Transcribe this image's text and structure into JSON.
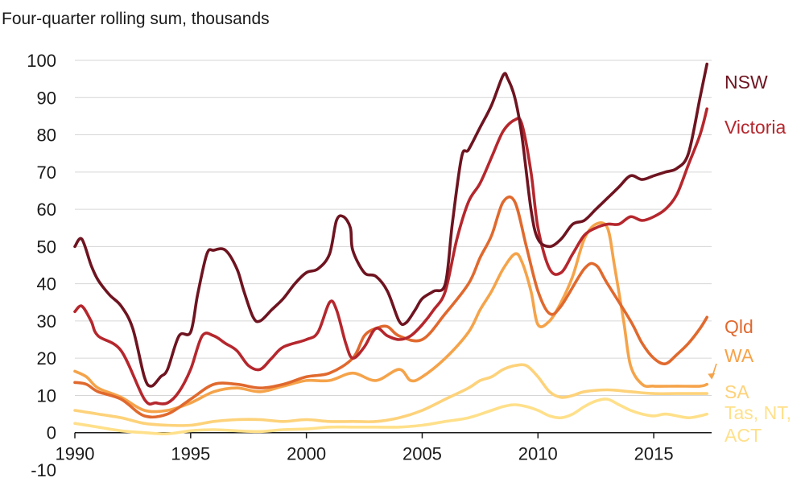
{
  "chart_data": {
    "type": "line",
    "subtitle": "Four-quarter rolling sum, thousands",
    "xlim": [
      1990,
      2017.5
    ],
    "ylim": [
      -10,
      100
    ],
    "yticks": [
      -10,
      0,
      10,
      20,
      30,
      40,
      50,
      60,
      70,
      80,
      90,
      100
    ],
    "xticks": [
      1990,
      1995,
      2000,
      2005,
      2010,
      2015
    ],
    "grid": true,
    "legend": "direct labels at right end of lines",
    "series": [
      {
        "name": "Tas, NT, ACT",
        "color": "#ffe08a",
        "label_lines": [
          "Tas, NT,",
          "ACT"
        ],
        "points": [
          [
            1990,
            2.5
          ],
          [
            1991,
            1.5
          ],
          [
            1992,
            0.5
          ],
          [
            1993,
            0
          ],
          [
            1994,
            -0.3
          ],
          [
            1995,
            0.5
          ],
          [
            1996,
            0.8
          ],
          [
            1997,
            0.5
          ],
          [
            1998,
            0.3
          ],
          [
            1999,
            0.8
          ],
          [
            2000,
            1
          ],
          [
            2001,
            1.5
          ],
          [
            2002,
            1.5
          ],
          [
            2003,
            1.5
          ],
          [
            2004,
            1.5
          ],
          [
            2005,
            2
          ],
          [
            2006,
            3
          ],
          [
            2007,
            4
          ],
          [
            2008,
            6
          ],
          [
            2008.5,
            7
          ],
          [
            2009,
            7.5
          ],
          [
            2009.5,
            7
          ],
          [
            2010,
            6
          ],
          [
            2010.5,
            4.5
          ],
          [
            2011,
            4
          ],
          [
            2011.5,
            5
          ],
          [
            2012,
            7
          ],
          [
            2012.5,
            8.5
          ],
          [
            2013,
            9
          ],
          [
            2013.5,
            7.5
          ],
          [
            2014,
            6
          ],
          [
            2014.5,
            5
          ],
          [
            2015,
            4.5
          ],
          [
            2015.5,
            5
          ],
          [
            2016,
            4.5
          ],
          [
            2016.5,
            4
          ],
          [
            2017,
            4.5
          ],
          [
            2017.3,
            5
          ]
        ]
      },
      {
        "name": "SA",
        "color": "#fdd27a",
        "label_lines": [
          "SA"
        ],
        "points": [
          [
            1990,
            6
          ],
          [
            1990.5,
            5.5
          ],
          [
            1991,
            5
          ],
          [
            1992,
            4
          ],
          [
            1993,
            2.5
          ],
          [
            1994,
            2
          ],
          [
            1995,
            2
          ],
          [
            1996,
            3
          ],
          [
            1997,
            3.5
          ],
          [
            1998,
            3.5
          ],
          [
            1999,
            3
          ],
          [
            2000,
            3.5
          ],
          [
            2001,
            3
          ],
          [
            2002,
            3
          ],
          [
            2003,
            3
          ],
          [
            2004,
            4
          ],
          [
            2005,
            6
          ],
          [
            2006,
            9
          ],
          [
            2007,
            12
          ],
          [
            2007.5,
            14
          ],
          [
            2008,
            15
          ],
          [
            2008.5,
            17
          ],
          [
            2009,
            18
          ],
          [
            2009.5,
            18
          ],
          [
            2010,
            15
          ],
          [
            2010.5,
            11
          ],
          [
            2011,
            9.5
          ],
          [
            2011.5,
            10
          ],
          [
            2012,
            11
          ],
          [
            2013,
            11.5
          ],
          [
            2014,
            11
          ],
          [
            2015,
            10.5
          ],
          [
            2016,
            10.5
          ],
          [
            2017,
            10.5
          ],
          [
            2017.3,
            10.5
          ]
        ]
      },
      {
        "name": "WA",
        "color": "#f5a34a",
        "label_lines": [
          "WA"
        ],
        "label_arrow": true,
        "points": [
          [
            1990,
            16.5
          ],
          [
            1990.5,
            15
          ],
          [
            1991,
            12
          ],
          [
            1992,
            9.5
          ],
          [
            1993,
            6
          ],
          [
            1994,
            6
          ],
          [
            1995,
            8
          ],
          [
            1996,
            11
          ],
          [
            1997,
            12
          ],
          [
            1998,
            11
          ],
          [
            1999,
            12.5
          ],
          [
            2000,
            14
          ],
          [
            2001,
            14
          ],
          [
            2002,
            16
          ],
          [
            2003,
            14
          ],
          [
            2004,
            17
          ],
          [
            2004.5,
            14
          ],
          [
            2005,
            15
          ],
          [
            2006,
            20
          ],
          [
            2007,
            27
          ],
          [
            2007.5,
            33
          ],
          [
            2008,
            38
          ],
          [
            2008.5,
            44
          ],
          [
            2009,
            48
          ],
          [
            2009.3,
            46
          ],
          [
            2009.7,
            38
          ],
          [
            2010,
            29
          ],
          [
            2010.5,
            30
          ],
          [
            2011,
            35
          ],
          [
            2011.5,
            42
          ],
          [
            2012,
            52
          ],
          [
            2012.5,
            56
          ],
          [
            2013,
            55
          ],
          [
            2013.3,
            45
          ],
          [
            2013.7,
            30
          ],
          [
            2014,
            18
          ],
          [
            2014.5,
            13
          ],
          [
            2015,
            12.5
          ],
          [
            2016,
            12.5
          ],
          [
            2017,
            12.5
          ],
          [
            2017.3,
            13
          ]
        ]
      },
      {
        "name": "Qld",
        "color": "#e0692e",
        "label_lines": [
          "Qld"
        ],
        "points": [
          [
            1990,
            13.5
          ],
          [
            1990.5,
            13
          ],
          [
            1991,
            11
          ],
          [
            1992,
            9
          ],
          [
            1993,
            4.5
          ],
          [
            1994,
            5
          ],
          [
            1995,
            9
          ],
          [
            1996,
            13
          ],
          [
            1997,
            13
          ],
          [
            1998,
            12
          ],
          [
            1999,
            13
          ],
          [
            2000,
            15
          ],
          [
            2001,
            16
          ],
          [
            2002,
            20
          ],
          [
            2002.5,
            26
          ],
          [
            2003,
            28
          ],
          [
            2003.5,
            28.5
          ],
          [
            2004,
            26
          ],
          [
            2005,
            25
          ],
          [
            2006,
            32
          ],
          [
            2007,
            40
          ],
          [
            2007.5,
            47
          ],
          [
            2008,
            53
          ],
          [
            2008.5,
            62
          ],
          [
            2009,
            62
          ],
          [
            2009.5,
            50
          ],
          [
            2010,
            38
          ],
          [
            2010.5,
            32
          ],
          [
            2011,
            34
          ],
          [
            2012,
            44
          ],
          [
            2012.5,
            45
          ],
          [
            2013,
            40
          ],
          [
            2014,
            30
          ],
          [
            2014.5,
            24
          ],
          [
            2015,
            20
          ],
          [
            2015.5,
            18.5
          ],
          [
            2016,
            21
          ],
          [
            2016.5,
            24
          ],
          [
            2017,
            28
          ],
          [
            2017.3,
            31
          ]
        ]
      },
      {
        "name": "Victoria",
        "color": "#b5272d",
        "label_lines": [
          "Victoria"
        ],
        "points": [
          [
            1990,
            32.5
          ],
          [
            1990.3,
            34
          ],
          [
            1990.7,
            30
          ],
          [
            1991,
            26
          ],
          [
            1992,
            22
          ],
          [
            1993,
            9
          ],
          [
            1993.5,
            8
          ],
          [
            1994,
            8
          ],
          [
            1994.5,
            11
          ],
          [
            1995,
            17
          ],
          [
            1995.5,
            26
          ],
          [
            1996,
            26
          ],
          [
            1996.5,
            24
          ],
          [
            1997,
            22
          ],
          [
            1997.5,
            18
          ],
          [
            1998,
            17
          ],
          [
            1998.5,
            20
          ],
          [
            1999,
            23
          ],
          [
            2000,
            25
          ],
          [
            2000.5,
            27
          ],
          [
            2001,
            35
          ],
          [
            2001.3,
            33
          ],
          [
            2001.7,
            24
          ],
          [
            2002,
            20
          ],
          [
            2002.5,
            23
          ],
          [
            2003,
            28
          ],
          [
            2003.5,
            26
          ],
          [
            2004,
            25
          ],
          [
            2004.5,
            26
          ],
          [
            2005,
            29
          ],
          [
            2005.5,
            33
          ],
          [
            2006,
            38
          ],
          [
            2006.5,
            52
          ],
          [
            2007,
            62
          ],
          [
            2007.5,
            67
          ],
          [
            2008,
            74
          ],
          [
            2008.5,
            81
          ],
          [
            2009,
            84
          ],
          [
            2009.3,
            83
          ],
          [
            2009.7,
            70
          ],
          [
            2010,
            55
          ],
          [
            2010.5,
            44
          ],
          [
            2011,
            43
          ],
          [
            2011.5,
            48
          ],
          [
            2012,
            53
          ],
          [
            2012.5,
            55
          ],
          [
            2013,
            56
          ],
          [
            2013.5,
            56
          ],
          [
            2014,
            58
          ],
          [
            2014.5,
            57
          ],
          [
            2015,
            58
          ],
          [
            2015.5,
            60
          ],
          [
            2016,
            64
          ],
          [
            2016.5,
            72
          ],
          [
            2017,
            80
          ],
          [
            2017.3,
            87
          ]
        ]
      },
      {
        "name": "NSW",
        "color": "#6e1420",
        "label_lines": [
          "NSW"
        ],
        "points": [
          [
            1990,
            50
          ],
          [
            1990.3,
            52
          ],
          [
            1990.7,
            45
          ],
          [
            1991,
            41
          ],
          [
            1991.5,
            37
          ],
          [
            1992,
            34
          ],
          [
            1992.5,
            28
          ],
          [
            1993,
            15
          ],
          [
            1993.3,
            12.5
          ],
          [
            1993.7,
            15
          ],
          [
            1994,
            17
          ],
          [
            1994.5,
            26
          ],
          [
            1995,
            27
          ],
          [
            1995.3,
            37
          ],
          [
            1995.7,
            48
          ],
          [
            1996,
            49
          ],
          [
            1996.5,
            49
          ],
          [
            1997,
            44
          ],
          [
            1997.3,
            38
          ],
          [
            1997.7,
            31
          ],
          [
            1998,
            30
          ],
          [
            1998.5,
            33
          ],
          [
            1999,
            36
          ],
          [
            1999.5,
            40
          ],
          [
            2000,
            43
          ],
          [
            2000.5,
            44
          ],
          [
            2001,
            48
          ],
          [
            2001.3,
            57
          ],
          [
            2001.6,
            58
          ],
          [
            2001.9,
            55
          ],
          [
            2002,
            49
          ],
          [
            2002.5,
            43
          ],
          [
            2003,
            42
          ],
          [
            2003.5,
            38
          ],
          [
            2004,
            30
          ],
          [
            2004.3,
            29.5
          ],
          [
            2004.7,
            33
          ],
          [
            2005,
            36
          ],
          [
            2005.5,
            38
          ],
          [
            2006,
            40
          ],
          [
            2006.3,
            56
          ],
          [
            2006.7,
            74
          ],
          [
            2007,
            76
          ],
          [
            2007.5,
            82
          ],
          [
            2008,
            88
          ],
          [
            2008.5,
            96
          ],
          [
            2008.7,
            95
          ],
          [
            2009,
            90
          ],
          [
            2009.3,
            80
          ],
          [
            2009.7,
            60
          ],
          [
            2010,
            52
          ],
          [
            2010.5,
            50
          ],
          [
            2011,
            52
          ],
          [
            2011.5,
            56
          ],
          [
            2012,
            57
          ],
          [
            2012.5,
            60
          ],
          [
            2013,
            63
          ],
          [
            2013.5,
            66
          ],
          [
            2014,
            69
          ],
          [
            2014.5,
            68
          ],
          [
            2015,
            69
          ],
          [
            2015.5,
            70
          ],
          [
            2016,
            71
          ],
          [
            2016.5,
            75
          ],
          [
            2017,
            90
          ],
          [
            2017.3,
            99
          ]
        ]
      }
    ]
  }
}
